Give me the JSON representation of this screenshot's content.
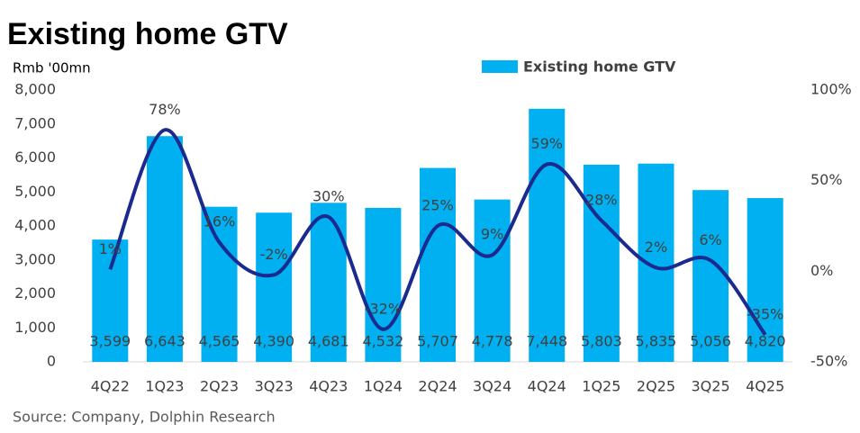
{
  "chart_data": {
    "type": "bar_line",
    "title": "Existing home GTV",
    "y_label": "Rmb '00mn",
    "source": "Source: Company, Dolphin Research",
    "categories": [
      "4Q22",
      "1Q23",
      "2Q23",
      "3Q23",
      "4Q23",
      "1Q24",
      "2Q24",
      "3Q24",
      "4Q24",
      "1Q25",
      "2Q25",
      "3Q25",
      "4Q25"
    ],
    "series": [
      {
        "name": "Existing home GTV",
        "type": "bar",
        "color": "#00b0f0",
        "values": [
          3599,
          6643,
          4565,
          4390,
          4681,
          4532,
          5707,
          4778,
          7448,
          5803,
          5835,
          5056,
          4820
        ],
        "value_labels": [
          "3,599",
          "6,643",
          "4,565",
          "4,390",
          "4,681",
          "4,532",
          "5,707",
          "4,778",
          "7,448",
          "5,803",
          "5,835",
          "5,056",
          "4,820"
        ]
      },
      {
        "type": "line",
        "axis": "y2",
        "color": "#1b2a8f",
        "values": [
          1,
          78,
          16,
          -2,
          30,
          -32,
          25,
          9,
          59,
          28,
          2,
          6,
          -35
        ],
        "value_labels": [
          "1%",
          "78%",
          "16%",
          "-2%",
          "30%",
          "-32%",
          "25%",
          "9%",
          "59%",
          "28%",
          "2%",
          "6%",
          "-35%"
        ]
      }
    ],
    "ylim": [
      0,
      8000
    ],
    "yticks": [
      0,
      {
        "value": 1000,
        "label": "1,000"
      },
      {
        "value": 2000,
        "label": "2,000"
      },
      {
        "value": 3000,
        "label": "3,000"
      },
      {
        "value": 4000,
        "label": "4,000"
      },
      {
        "value": 5000,
        "label": "5,000"
      },
      {
        "value": 6000,
        "label": "6,000"
      },
      {
        "value": 7000,
        "label": "7,000"
      },
      {
        "value": 8000,
        "label": "8,000"
      }
    ],
    "y2lim": [
      -50,
      100
    ],
    "y2ticks": [
      {
        "value": -50,
        "label": "-50%"
      },
      {
        "value": 0,
        "label": "0%"
      },
      {
        "value": 50,
        "label": "50%"
      },
      {
        "value": 100,
        "label": "100%"
      }
    ],
    "legend": "top"
  }
}
